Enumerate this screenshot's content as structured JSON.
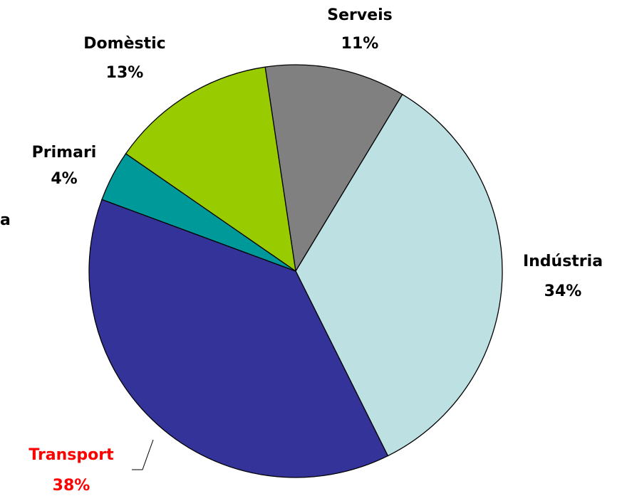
{
  "chart_data": {
    "type": "pie",
    "categories": [
      "Serveis",
      "Indústria",
      "Transport",
      "Primari",
      "Domèstic"
    ],
    "values": [
      11,
      34,
      38,
      4,
      13
    ],
    "value_labels": [
      "11%",
      "34%",
      "38%",
      "4%",
      "13%"
    ],
    "colors": [
      "#808080",
      "#bde0e3",
      "#333399",
      "#009999",
      "#99cc00"
    ],
    "label_colors": [
      "#000000",
      "#000000",
      "#ff0000",
      "#000000",
      "#000000"
    ],
    "annotation": "a"
  }
}
